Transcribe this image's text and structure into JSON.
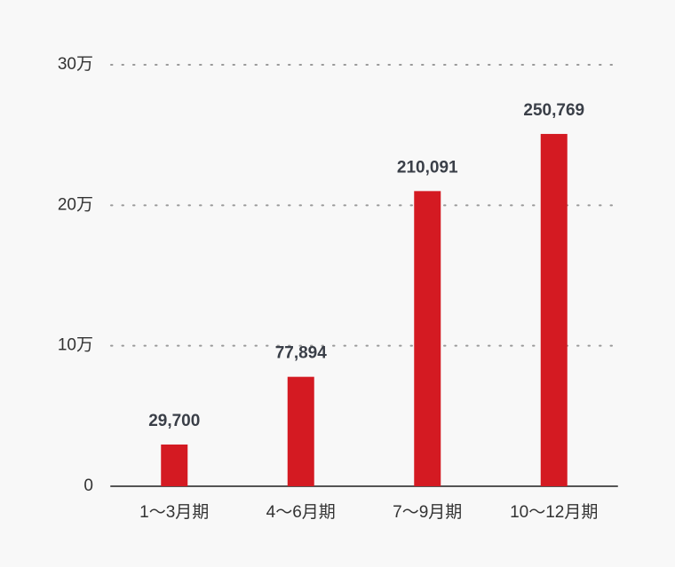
{
  "chart_data": {
    "type": "bar",
    "categories": [
      "1～3月期",
      "4～6月期",
      "7～9月期",
      "10～12月期"
    ],
    "values": [
      29700,
      77894,
      210091,
      250769
    ],
    "value_labels": [
      "29,700",
      "77,894",
      "210,091",
      "250,769"
    ],
    "color": "#d41a22",
    "ylim": [
      0,
      300000
    ],
    "yticks": [
      0,
      {
        "value": 100000,
        "label": "10万"
      },
      {
        "value": 200000,
        "label": "20万"
      },
      {
        "value": 300000,
        "label": "30万"
      }
    ],
    "grid": true
  }
}
